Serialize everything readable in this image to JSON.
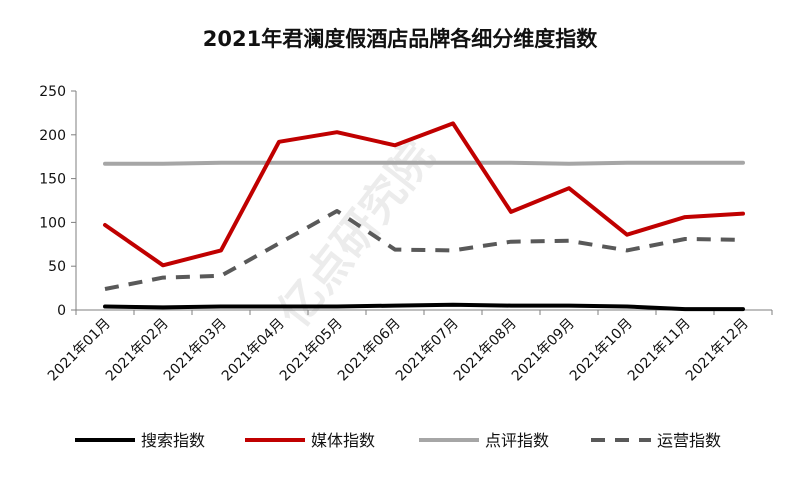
{
  "chart_data": {
    "type": "line",
    "title": "2021年君澜度假酒店品牌各细分维度指数",
    "xlabel": "",
    "ylabel": "",
    "categories": [
      "2021年01月",
      "2021年02月",
      "2021年03月",
      "2021年04月",
      "2021年05月",
      "2021年06月",
      "2021年07月",
      "2021年08月",
      "2021年09月",
      "2021年10月",
      "2021年11月",
      "2021年12月"
    ],
    "ylim": [
      0,
      250
    ],
    "yticks": [
      0,
      50,
      100,
      150,
      200,
      250
    ],
    "grid": false,
    "legend_position": "bottom",
    "series": [
      {
        "name": "搜索指数",
        "color": "#000000",
        "dash": "solid",
        "values": [
          4,
          3,
          4,
          4,
          4,
          5,
          6,
          5,
          5,
          4,
          1,
          1
        ]
      },
      {
        "name": "媒体指数",
        "color": "#c00000",
        "dash": "solid",
        "values": [
          97,
          51,
          68,
          192,
          203,
          188,
          213,
          112,
          139,
          86,
          106,
          110
        ]
      },
      {
        "name": "点评指数",
        "color": "#a6a6a6",
        "dash": "solid",
        "values": [
          167,
          167,
          168,
          168,
          168,
          168,
          168,
          168,
          167,
          168,
          168,
          168
        ]
      },
      {
        "name": "运营指数",
        "color": "#595959",
        "dash": "dash",
        "values": [
          24,
          37,
          39,
          76,
          113,
          69,
          68,
          78,
          79,
          68,
          81,
          80
        ]
      }
    ]
  },
  "watermark": "亿点研究院"
}
